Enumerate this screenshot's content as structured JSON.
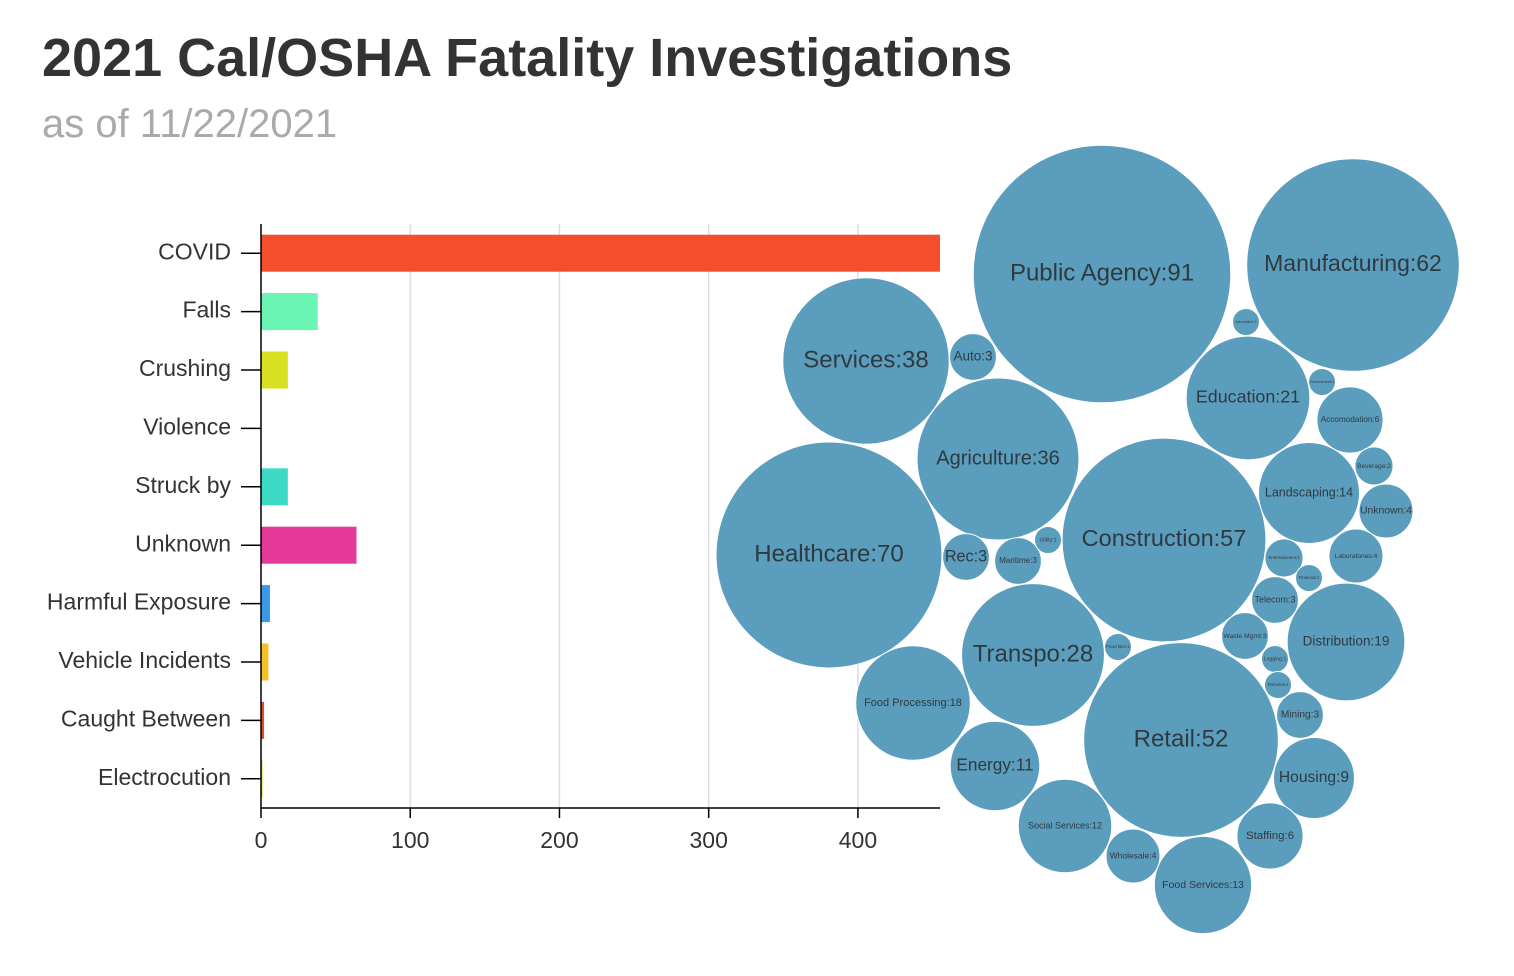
{
  "title": "2021 Cal/OSHA Fatality Investigations",
  "subtitle": "as of 11/22/2021",
  "chart_data": [
    {
      "type": "bar",
      "orientation": "horizontal",
      "categories": [
        "COVID",
        "Falls",
        "Crushing",
        "Violence",
        "Struck by",
        "Unknown",
        "Harmful Exposure",
        "Vehicle Incidents",
        "Caught Between",
        "Electrocution"
      ],
      "values": [
        455,
        38,
        18,
        0,
        18,
        64,
        6,
        5,
        2,
        1
      ],
      "colors": [
        "#f44e2c",
        "#6af5b5",
        "#d8e021",
        null,
        "#3ddbc5",
        "#e5399a",
        "#3b9ae8",
        "#f4c12a",
        "#e8472c",
        "#d9d92a"
      ],
      "xlim": [
        0,
        455
      ],
      "xticks": [
        0,
        100,
        200,
        300,
        400
      ],
      "grid": true
    },
    {
      "type": "bubble",
      "color": "#5b9dbd",
      "categories": [
        "Public Agency",
        "Manufacturing",
        "Services",
        "Auto",
        "Information",
        "Education",
        "Government",
        "Accomodation",
        "Agriculture",
        "Beverage",
        "Landscaping",
        "Unknown",
        "Construction",
        "Healthcare",
        "Rec",
        "Maritime",
        "Utility",
        "Entertainment",
        "Laboratories",
        "Financial",
        "Telecom",
        "Waste Mgmt",
        "Distribution",
        "Transpo",
        "Food Bev",
        "Logging",
        "Fisheries",
        "Food Processing",
        "Retail",
        "Mining",
        "Energy",
        "Housing",
        "Social Services",
        "Staffing",
        "Wholesale",
        "Food Services"
      ],
      "values": [
        91,
        62,
        38,
        3,
        1,
        21,
        1,
        6,
        36,
        2,
        14,
        4,
        57,
        70,
        3,
        3,
        1,
        2,
        4,
        1,
        3,
        3,
        19,
        28,
        1,
        1,
        1,
        18,
        52,
        3,
        11,
        9,
        12,
        6,
        4,
        13
      ],
      "value_labels": [
        "Public Agency:91",
        "Manufacturing:62",
        "Services:38",
        "Auto:3",
        "Information:1",
        "Education:21",
        "Government:1",
        "Accomodation:6",
        "Agriculture:36",
        "Beverage:2",
        "Landscaping:14",
        "Unknown:4",
        "Construction:57",
        "Healthcare:70",
        "Rec:3",
        "Maritime:3",
        "Utility:1",
        "Entertainment:2",
        "Laboratories:4",
        "Financial:1",
        "Telecom:3",
        "Waste Mgmt:3",
        "Distribution:19",
        "Transpo:28",
        "Food Bev:1",
        "Logging:1",
        "Fisheries:1",
        "Food Processing:18",
        "Retail:52",
        "Mining:3",
        "Energy:11",
        "Housing:9",
        "Social Services:12",
        "Staffing:6",
        "Wholesale:4",
        "Food Services:13"
      ]
    }
  ]
}
